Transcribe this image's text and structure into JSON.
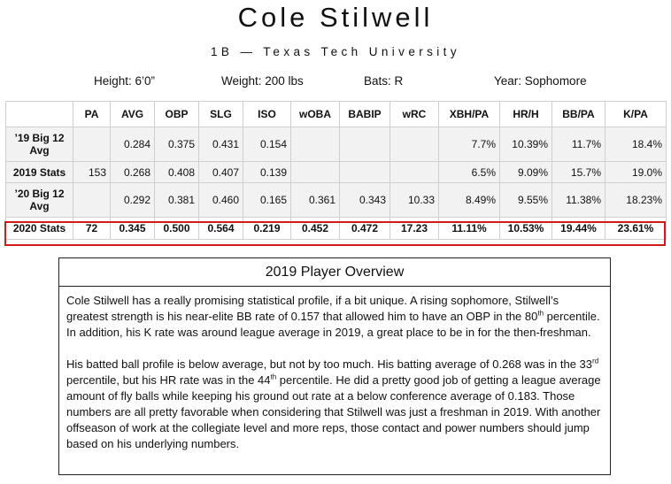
{
  "header": {
    "name": "Cole Stilwell",
    "subtitle": "1B — Texas Tech University"
  },
  "bio": {
    "height": "Height: 6’0”",
    "weight": "Weight: 200 lbs",
    "bats": "Bats: R",
    "year": "Year: Sophomore"
  },
  "table": {
    "columns": [
      "",
      "PA",
      "AVG",
      "OBP",
      "SLG",
      "ISO",
      "wOBA",
      "BABIP",
      "wRC",
      "XBH/PA",
      "HR/H",
      "BB/PA",
      "K/PA"
    ],
    "rows": [
      {
        "label_line1": "’19 Big 12",
        "label_line2": "Avg",
        "cells": [
          "",
          "0.284",
          "0.375",
          "0.431",
          "0.154",
          "",
          "",
          "",
          "7.7%",
          "10.39%",
          "11.7%",
          "18.4%"
        ]
      },
      {
        "label_line1": "2019 Stats",
        "label_line2": "",
        "cells": [
          "153",
          "0.268",
          "0.408",
          "0.407",
          "0.139",
          "",
          "",
          "",
          "6.5%",
          "9.09%",
          "15.7%",
          "19.0%"
        ]
      },
      {
        "label_line1": "’20 Big 12",
        "label_line2": "Avg",
        "cells": [
          "",
          "0.292",
          "0.381",
          "0.460",
          "0.165",
          "0.361",
          "0.343",
          "10.33",
          "8.49%",
          "9.55%",
          "11.38%",
          "18.23%"
        ]
      },
      {
        "label_line1": "2020 Stats",
        "label_line2": "",
        "cells": [
          "72",
          "0.345",
          "0.500",
          "0.564",
          "0.219",
          "0.452",
          "0.472",
          "17.23",
          "11.11%",
          "10.53%",
          "19.44%",
          "23.61%"
        ]
      }
    ],
    "highlight_color": "#d11a1a"
  },
  "overview": {
    "title": "2019 Player Overview",
    "p1_a": "Cole Stilwell has a really promising statistical profile, if a bit unique. A rising sophomore, Stilwell’s greatest strength is his near-elite BB rate of 0.157 that allowed him to have an OBP in the 80",
    "p1_sup": "th",
    "p1_b": " percentile. In addition, his K rate was around league average in 2019, a great place to be in for the then-freshman.",
    "p2_a": "His batted ball profile is below average, but not by too much. His batting average of 0.268 was in the 33",
    "p2_sup1": "rd",
    "p2_b": " percentile, but his HR rate was in the 44",
    "p2_sup2": "th",
    "p2_c": " percentile. He did a pretty good job of getting a league average amount of fly balls while keeping his ground out rate at a below conference average of 0.183. Those numbers are all pretty favorable when considering that Stilwell was just a freshman in 2019. With another offseason of work at the collegiate level and more reps, those contact and power numbers should jump based on his underlying numbers."
  }
}
